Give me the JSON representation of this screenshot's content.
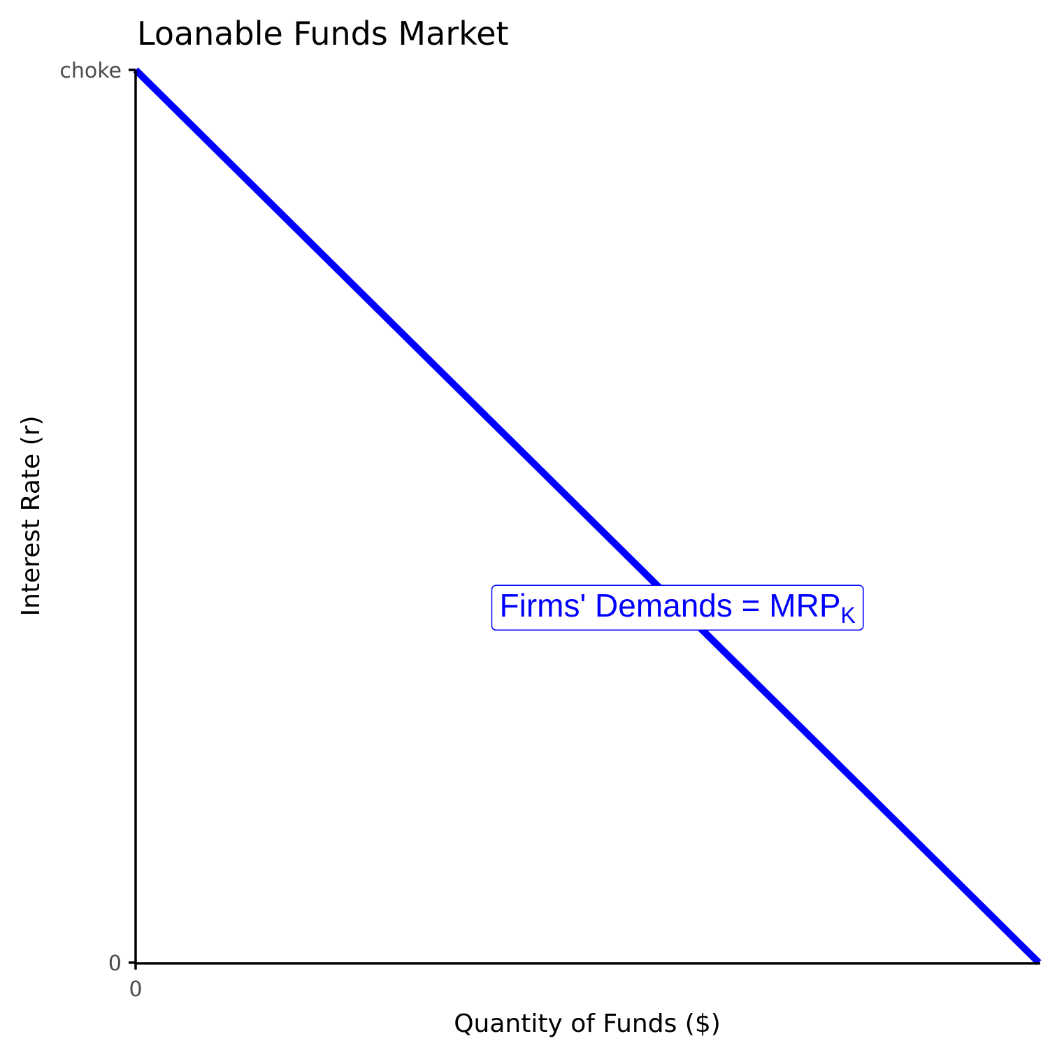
{
  "chart_data": {
    "type": "line",
    "title": "Loanable Funds Market",
    "xlabel": "Quantity of Funds ($)",
    "ylabel": "Interest Rate (r)",
    "xlim": [
      0,
      1
    ],
    "ylim": [
      0,
      1
    ],
    "x_ticks": [
      {
        "value": 0,
        "label": "0"
      }
    ],
    "y_ticks": [
      {
        "value": 0,
        "label": "0"
      },
      {
        "value": 1,
        "label": "choke"
      }
    ],
    "grid": false,
    "series": [
      {
        "color": "#0000ff",
        "x": [
          0,
          1
        ],
        "y": [
          1,
          0
        ]
      }
    ],
    "annotations": [
      {
        "text_main": "Firms' Demands = MRP",
        "text_subscript": "K",
        "x": 0.6,
        "y": 0.4,
        "color": "#0000ff",
        "boxed": true
      }
    ]
  }
}
